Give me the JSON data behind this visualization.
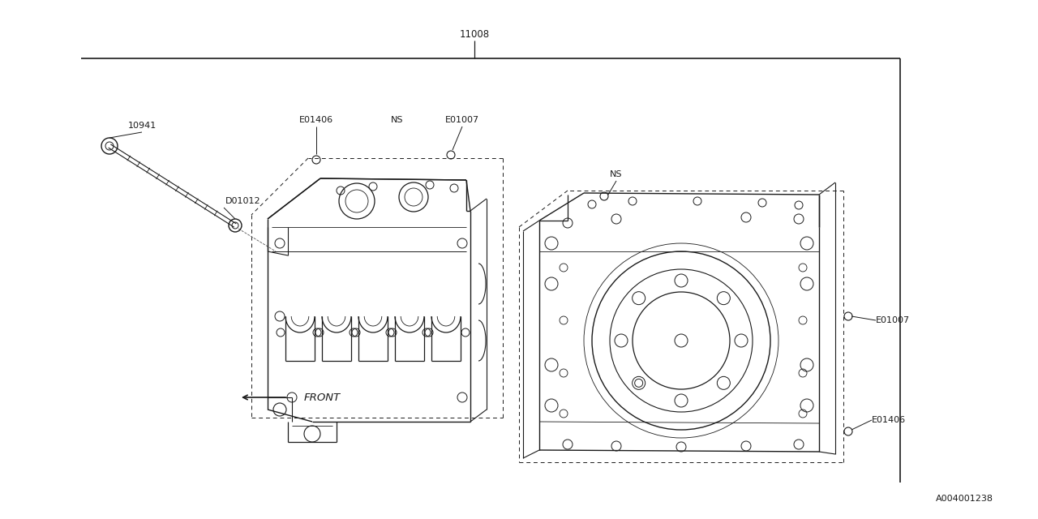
{
  "background_color": "#ffffff",
  "line_color": "#1a1a1a",
  "text_color": "#1a1a1a",
  "fig_width": 12.8,
  "fig_height": 6.4,
  "dpi": 100,
  "title_11008": "11008",
  "label_10941": "10941",
  "label_D01012": "D01012",
  "label_E01406_left": "E01406",
  "label_NS_left": "NS",
  "label_E01007_left": "E01007",
  "label_NS_right": "NS",
  "label_E01007_right": "E01007",
  "label_E01406_right": "E01406",
  "label_front": "←FRONT",
  "catalog": "A004001238"
}
